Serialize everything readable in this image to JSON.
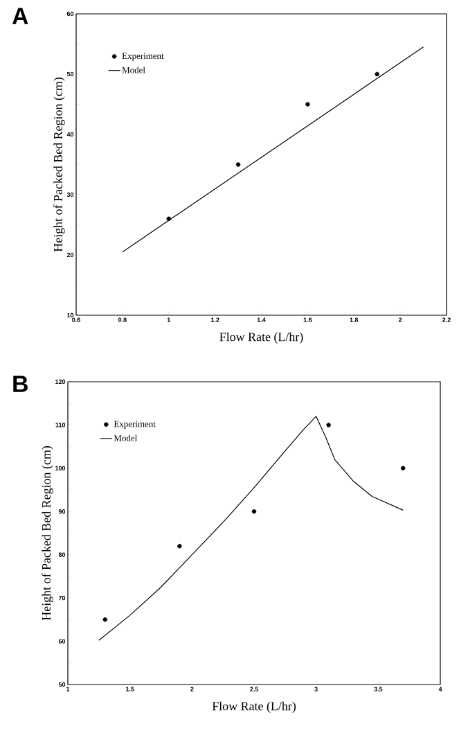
{
  "chart_data": [
    {
      "type": "scatter",
      "title": "A",
      "xlabel": "Flow Rate (L/hr)",
      "ylabel": "Height of Packed Bed Region (cm)",
      "xlim": [
        0.6,
        2.2
      ],
      "ylim": [
        10,
        60
      ],
      "xticks": [
        0.6,
        0.8,
        1,
        1.2,
        1.4,
        1.6,
        1.8,
        2,
        2.2
      ],
      "yticks": [
        10,
        {
          "value": 15,
          "label": null
        },
        20,
        {
          "value": 25,
          "label": null
        },
        30,
        {
          "value": 35,
          "label": null
        },
        40,
        {
          "value": 45,
          "label": null
        },
        50,
        {
          "value": 55,
          "label": null
        },
        60
      ],
      "legend": "top left",
      "grid": false,
      "series": [
        {
          "name": "Experiment",
          "marker": "circle",
          "color": "#000000",
          "x": [
            1.0,
            1.3,
            1.6,
            1.9
          ],
          "values": [
            26,
            35,
            45,
            50
          ]
        },
        {
          "name": "Model",
          "type": "line",
          "marker": "none",
          "line_style": "solid",
          "color": "#000000",
          "x": [
            0.8,
            2.1
          ],
          "values": [
            20.5,
            54.5
          ]
        }
      ]
    },
    {
      "type": "scatter",
      "title": "B",
      "xlabel": "Flow Rate (L/hr)",
      "ylabel": "Height of Packed Bed Region (cm)",
      "xlim": [
        1,
        4
      ],
      "ylim": [
        50,
        120
      ],
      "xticks": [
        1,
        1.5,
        2,
        2.5,
        3,
        3.5,
        4
      ],
      "yticks": [
        50,
        {
          "value": 55,
          "label": null
        },
        60,
        {
          "value": 65,
          "label": null
        },
        70,
        {
          "value": 75,
          "label": null
        },
        80,
        {
          "value": 85,
          "label": null
        },
        90,
        {
          "value": 95,
          "label": null
        },
        100,
        {
          "value": 105,
          "label": null
        },
        110,
        {
          "value": 115,
          "label": null
        },
        120
      ],
      "legend": "top left",
      "grid": false,
      "series": [
        {
          "name": "Experiment",
          "marker": "circle",
          "color": "#000000",
          "x": [
            1.3,
            1.9,
            2.5,
            3.1,
            3.7
          ],
          "values": [
            65,
            82,
            90,
            110,
            100
          ]
        },
        {
          "name": "Model",
          "type": "line",
          "marker": "none",
          "line_style": "solid",
          "color": "#000000",
          "x": [
            1.25,
            1.5,
            1.75,
            2.0,
            2.25,
            2.5,
            2.75,
            2.9,
            3.0,
            3.08,
            3.15,
            3.3,
            3.45,
            3.7
          ],
          "values": [
            60.2,
            66,
            72.5,
            80,
            87.5,
            95.5,
            104,
            109,
            112,
            107,
            102,
            97,
            93.5,
            90.3
          ]
        }
      ]
    }
  ]
}
